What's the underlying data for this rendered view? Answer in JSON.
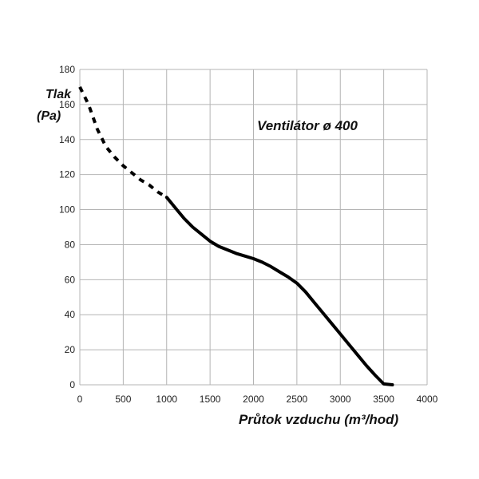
{
  "chart_data": {
    "type": "line",
    "title": "Ventilátor ø 400",
    "xlabel": "Průtok vzduchu (m³/hod)",
    "ylabel_line1": "Tlak",
    "ylabel_line2": "(Pa)",
    "xlim": [
      0,
      4000
    ],
    "ylim": [
      0,
      180
    ],
    "xticks": [
      0,
      500,
      1000,
      1500,
      2000,
      2500,
      3000,
      3500,
      4000
    ],
    "yticks": [
      0,
      20,
      40,
      60,
      80,
      100,
      120,
      140,
      160,
      180
    ],
    "grid": true,
    "colors": {
      "curve": "#000000",
      "grid": "#b4b4b4"
    },
    "series": [
      {
        "style": "dashed",
        "x": [
          0,
          100,
          200,
          300,
          400,
          500,
          600,
          700,
          800,
          900,
          1000
        ],
        "y": [
          170,
          160,
          146,
          136,
          130,
          125,
          121,
          117,
          114,
          110,
          107
        ]
      },
      {
        "style": "solid",
        "x": [
          1000,
          1100,
          1200,
          1300,
          1400,
          1500,
          1600,
          1700,
          1800,
          1900,
          2000,
          2100,
          2200,
          2300,
          2400,
          2500,
          2600,
          2700,
          2800,
          2900,
          3000,
          3100,
          3200,
          3300,
          3400,
          3500,
          3600
        ],
        "y": [
          107,
          101,
          95,
          90,
          86,
          82,
          79,
          77,
          75,
          73.5,
          72,
          70,
          67.5,
          64.5,
          61.5,
          58,
          53,
          47,
          41,
          35,
          29,
          23,
          17,
          11,
          5.5,
          0.5,
          0
        ]
      }
    ]
  }
}
